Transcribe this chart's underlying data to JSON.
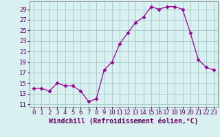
{
  "x": [
    0,
    1,
    2,
    3,
    4,
    5,
    6,
    7,
    8,
    9,
    10,
    11,
    12,
    13,
    14,
    15,
    16,
    17,
    18,
    19,
    20,
    21,
    22,
    23
  ],
  "y": [
    14.0,
    14.0,
    13.5,
    15.0,
    14.5,
    14.5,
    13.5,
    11.5,
    12.0,
    17.5,
    19.0,
    22.5,
    24.5,
    26.5,
    27.5,
    29.5,
    29.0,
    29.5,
    29.5,
    29.0,
    24.5,
    19.5,
    18.0,
    17.5
  ],
  "line_color": "#990099",
  "marker": "D",
  "marker_size": 2.5,
  "bg_color": "#d8f0f0",
  "grid_color": "#aacccc",
  "xlabel": "Windchill (Refroidissement éolien,°C)",
  "xlabel_fontsize": 7,
  "xtick_labels": [
    "0",
    "1",
    "2",
    "3",
    "4",
    "5",
    "6",
    "7",
    "8",
    "9",
    "10",
    "11",
    "12",
    "13",
    "14",
    "15",
    "16",
    "17",
    "18",
    "19",
    "20",
    "21",
    "22",
    "23"
  ],
  "yticks": [
    11,
    13,
    15,
    17,
    19,
    21,
    23,
    25,
    27,
    29
  ],
  "ylim": [
    10.5,
    30.5
  ],
  "xlim": [
    -0.5,
    23.5
  ],
  "tick_fontsize": 6.5,
  "spine_color": "#888888"
}
